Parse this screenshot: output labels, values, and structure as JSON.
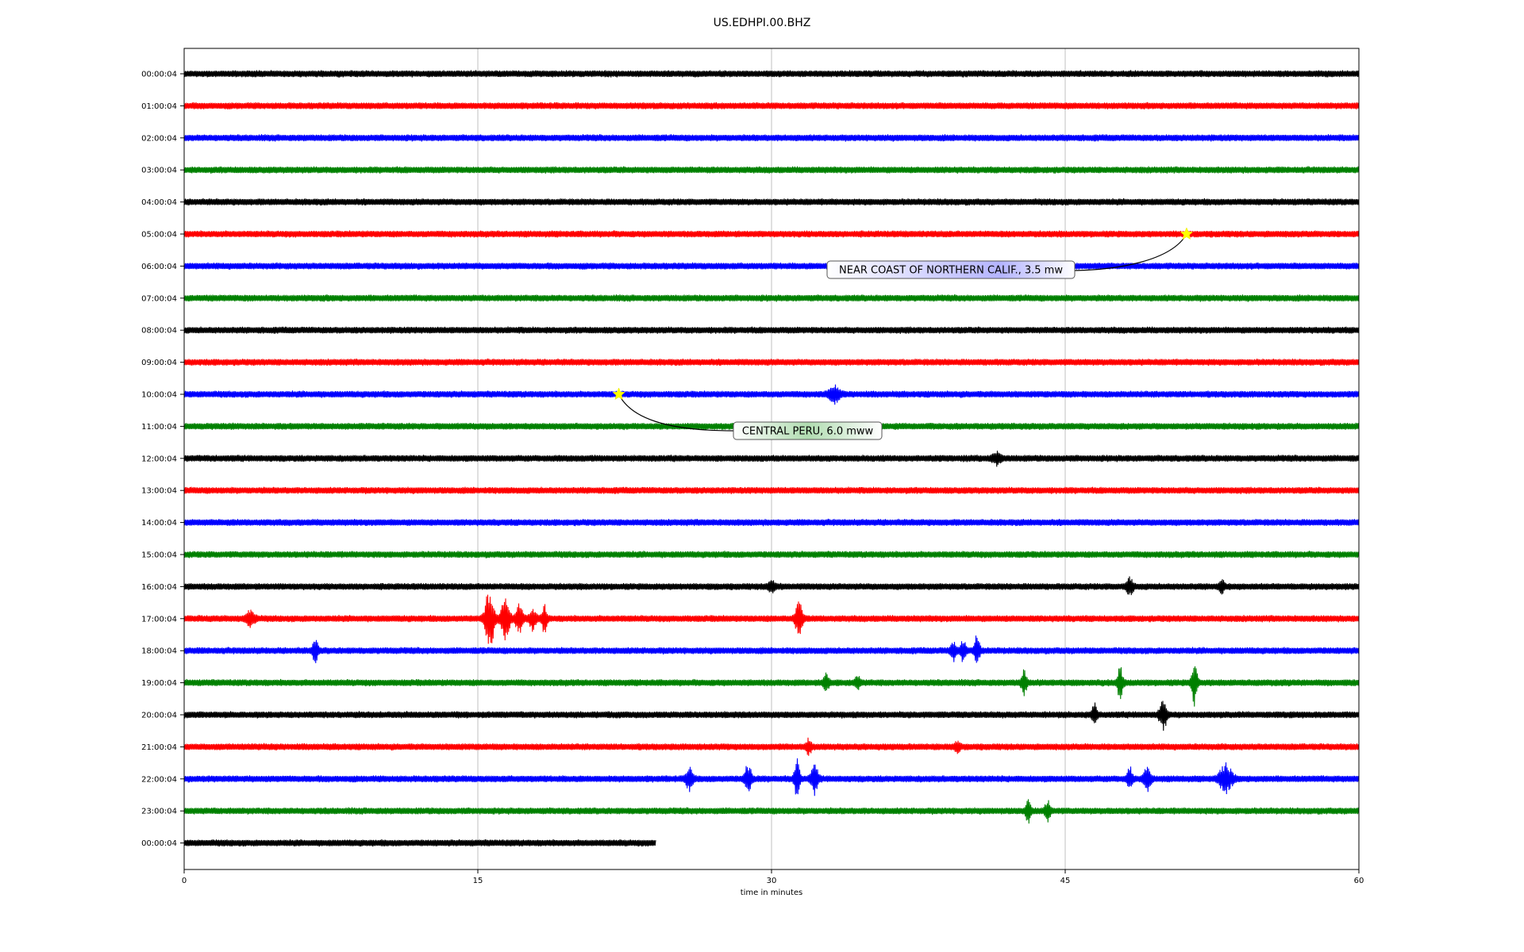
{
  "title": "US.EDHPI.00.BHZ",
  "chart_data": {
    "type": "line",
    "title": "US.EDHPI.00.BHZ",
    "xlabel": "time in minutes",
    "ylabel": "",
    "xlim": [
      0,
      60
    ],
    "x_ticks": [
      0,
      15,
      30,
      45,
      60
    ],
    "x_tick_labels": [
      "0",
      "15",
      "30",
      "45",
      "60"
    ],
    "grid": "vertical gridlines at 15, 30, 45",
    "trace_colors": [
      "#000000",
      "#ff0000",
      "#0000ff",
      "#008000"
    ],
    "rows": [
      {
        "label": "00:00:04",
        "end_minute": 60
      },
      {
        "label": "01:00:04",
        "end_minute": 60
      },
      {
        "label": "02:00:04",
        "end_minute": 60
      },
      {
        "label": "03:00:04",
        "end_minute": 60
      },
      {
        "label": "04:00:04",
        "end_minute": 60
      },
      {
        "label": "05:00:04",
        "end_minute": 60
      },
      {
        "label": "06:00:04",
        "end_minute": 60
      },
      {
        "label": "07:00:04",
        "end_minute": 60
      },
      {
        "label": "08:00:04",
        "end_minute": 60
      },
      {
        "label": "09:00:04",
        "end_minute": 60
      },
      {
        "label": "10:00:04",
        "end_minute": 60
      },
      {
        "label": "11:00:04",
        "end_minute": 60
      },
      {
        "label": "12:00:04",
        "end_minute": 60
      },
      {
        "label": "13:00:04",
        "end_minute": 60
      },
      {
        "label": "14:00:04",
        "end_minute": 60
      },
      {
        "label": "15:00:04",
        "end_minute": 60
      },
      {
        "label": "16:00:04",
        "end_minute": 60
      },
      {
        "label": "17:00:04",
        "end_minute": 60
      },
      {
        "label": "18:00:04",
        "end_minute": 60
      },
      {
        "label": "19:00:04",
        "end_minute": 60
      },
      {
        "label": "20:00:04",
        "end_minute": 60
      },
      {
        "label": "21:00:04",
        "end_minute": 60
      },
      {
        "label": "22:00:04",
        "end_minute": 60
      },
      {
        "label": "23:00:04",
        "end_minute": 60
      },
      {
        "label": "00:00:04",
        "end_minute": 24.1
      }
    ],
    "bursts": [
      {
        "row": 10,
        "minute": 33.2,
        "amp": 0.35,
        "dur": 0.6
      },
      {
        "row": 12,
        "minute": 41.5,
        "amp": 0.22,
        "dur": 0.5
      },
      {
        "row": 16,
        "minute": 30.0,
        "amp": 0.2,
        "dur": 0.4
      },
      {
        "row": 16,
        "minute": 48.3,
        "amp": 0.3,
        "dur": 0.4
      },
      {
        "row": 16,
        "minute": 53.0,
        "amp": 0.25,
        "dur": 0.3
      },
      {
        "row": 17,
        "minute": 3.4,
        "amp": 0.3,
        "dur": 0.5
      },
      {
        "row": 17,
        "minute": 15.6,
        "amp": 1.35,
        "dur": 0.5
      },
      {
        "row": 17,
        "minute": 16.4,
        "amp": 0.8,
        "dur": 0.5
      },
      {
        "row": 17,
        "minute": 17.1,
        "amp": 0.6,
        "dur": 0.4
      },
      {
        "row": 17,
        "minute": 17.8,
        "amp": 0.45,
        "dur": 0.4
      },
      {
        "row": 17,
        "minute": 18.4,
        "amp": 0.55,
        "dur": 0.3
      },
      {
        "row": 17,
        "minute": 31.4,
        "amp": 0.75,
        "dur": 0.4
      },
      {
        "row": 18,
        "minute": 6.7,
        "amp": 0.5,
        "dur": 0.3
      },
      {
        "row": 18,
        "minute": 39.3,
        "amp": 0.4,
        "dur": 0.3
      },
      {
        "row": 18,
        "minute": 39.8,
        "amp": 0.45,
        "dur": 0.3
      },
      {
        "row": 18,
        "minute": 40.5,
        "amp": 0.65,
        "dur": 0.3
      },
      {
        "row": 19,
        "minute": 32.8,
        "amp": 0.4,
        "dur": 0.3
      },
      {
        "row": 19,
        "minute": 34.4,
        "amp": 0.25,
        "dur": 0.3
      },
      {
        "row": 19,
        "minute": 42.9,
        "amp": 0.5,
        "dur": 0.3
      },
      {
        "row": 19,
        "minute": 47.8,
        "amp": 0.65,
        "dur": 0.3
      },
      {
        "row": 19,
        "minute": 51.6,
        "amp": 0.9,
        "dur": 0.3
      },
      {
        "row": 20,
        "minute": 46.5,
        "amp": 0.4,
        "dur": 0.3
      },
      {
        "row": 20,
        "minute": 50.0,
        "amp": 0.65,
        "dur": 0.4
      },
      {
        "row": 21,
        "minute": 31.9,
        "amp": 0.3,
        "dur": 0.3
      },
      {
        "row": 21,
        "minute": 39.5,
        "amp": 0.2,
        "dur": 0.3
      },
      {
        "row": 22,
        "minute": 25.8,
        "amp": 0.45,
        "dur": 0.4
      },
      {
        "row": 22,
        "minute": 28.8,
        "amp": 0.55,
        "dur": 0.4
      },
      {
        "row": 22,
        "minute": 31.3,
        "amp": 0.75,
        "dur": 0.3
      },
      {
        "row": 22,
        "minute": 32.2,
        "amp": 0.6,
        "dur": 0.4
      },
      {
        "row": 22,
        "minute": 48.3,
        "amp": 0.45,
        "dur": 0.3
      },
      {
        "row": 22,
        "minute": 49.2,
        "amp": 0.5,
        "dur": 0.4
      },
      {
        "row": 22,
        "minute": 53.2,
        "amp": 0.6,
        "dur": 0.7
      },
      {
        "row": 23,
        "minute": 43.1,
        "amp": 0.5,
        "dur": 0.3
      },
      {
        "row": 23,
        "minute": 44.1,
        "amp": 0.4,
        "dur": 0.3
      }
    ],
    "annotations": [
      {
        "text": "NEAR COAST OF NORTHERN CALIF., 3.5 mw",
        "row": 5,
        "minute": 51.2,
        "box_color": "#b0b0ff",
        "star_color": "#ffff00"
      },
      {
        "text": "CENTRAL PERU, 6.0 mww",
        "row": 10,
        "minute": 22.2,
        "box_color": "#a8d8a8",
        "star_color": "#ffff00"
      }
    ]
  }
}
